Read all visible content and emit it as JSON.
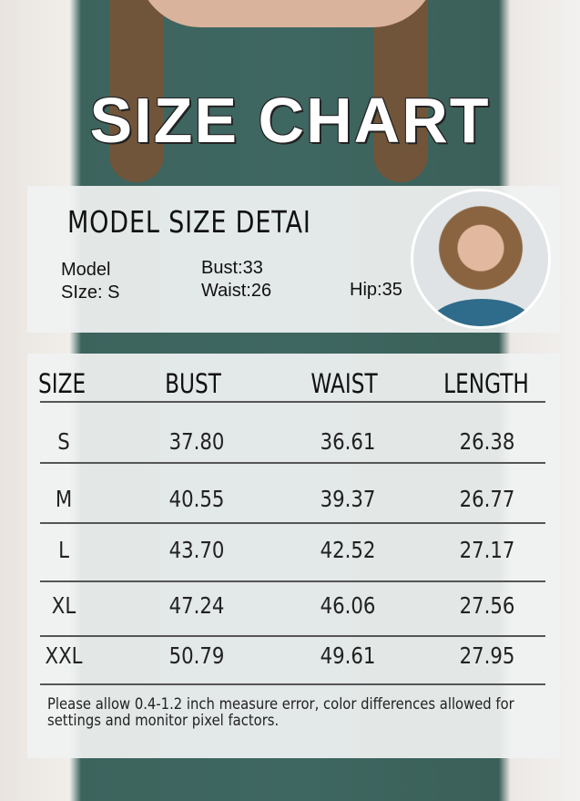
{
  "title": "SIZE CHART",
  "model": {
    "heading": "MODEL  SIZE  DETAI",
    "size_line1": "Model",
    "size_line2": "SIze: S",
    "bust": "Bust:33",
    "waist": "Waist:26",
    "hip": "Hip:35"
  },
  "table": {
    "headers": [
      "SIZE",
      "BUST",
      "WAIST",
      "LENGTH"
    ],
    "rows": [
      [
        "S",
        "37.80",
        "36.61",
        "26.38"
      ],
      [
        "M",
        "40.55",
        "39.37",
        "26.77"
      ],
      [
        "L",
        "43.70",
        "42.52",
        "27.17"
      ],
      [
        "XL",
        "47.24",
        "46.06",
        "27.56"
      ],
      [
        "XXL",
        "50.79",
        "49.61",
        "27.95"
      ]
    ]
  },
  "note": "Please allow 0.4-1.2 inch measure error, color differences allowed for settings and monitor pixel factors."
}
